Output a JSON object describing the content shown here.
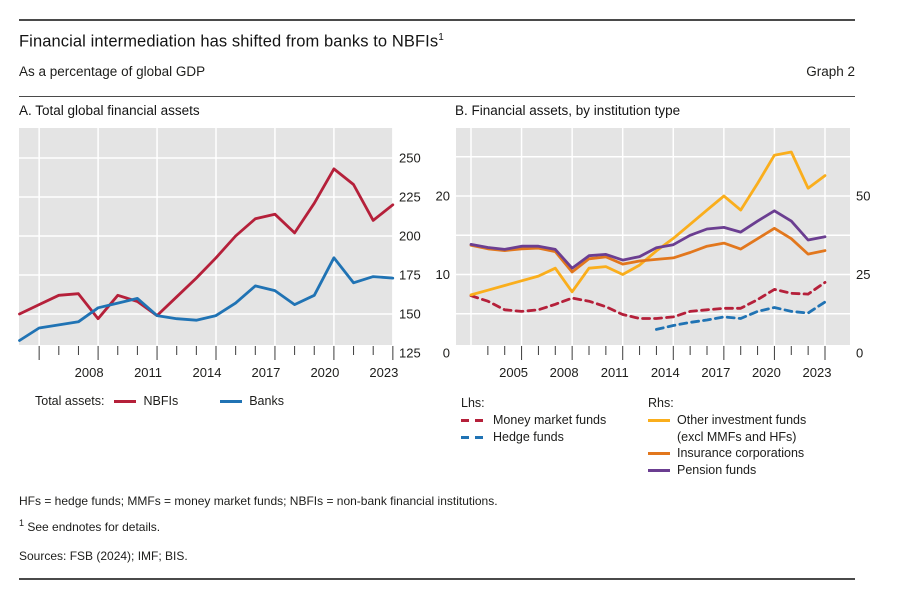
{
  "header": {
    "title": "Financial intermediation has shifted from banks to NBFIs",
    "title_superscript": "1",
    "subtitle": "As a percentage of global GDP",
    "graph_label": "Graph 2"
  },
  "colors": {
    "nbfi_red": "#b5203a",
    "banks_blue": "#2073b4",
    "oif_yellow": "#faae1c",
    "insurance_orange": "#e2771d",
    "pension_purple": "#6b3e91",
    "plot_bg": "#e4e4e4",
    "grid": "#ffffff",
    "tick": "#3c3c3c",
    "rule": "#4a4a4a"
  },
  "panel_a": {
    "title": "A. Total global financial assets",
    "legend_prefix": "Total assets:",
    "legend": [
      {
        "label": "NBFIs",
        "color": "#b5203a"
      },
      {
        "label": "Banks",
        "color": "#2073b4"
      }
    ]
  },
  "panel_b": {
    "title": "B. Financial assets, by institution type",
    "legend_lhs_header": "Lhs:",
    "legend_lhs": [
      {
        "label": "Money market funds",
        "color": "#b5203a"
      },
      {
        "label": "Hedge funds",
        "color": "#2073b4"
      }
    ],
    "legend_rhs_header": "Rhs:",
    "legend_rhs": [
      {
        "label": "Other investment funds",
        "label2": "(excl MMFs and HFs)",
        "color": "#faae1c"
      },
      {
        "label": "Insurance corporations",
        "label2": "",
        "color": "#e2771d"
      },
      {
        "label": "Pension funds",
        "label2": "",
        "color": "#6b3e91"
      }
    ]
  },
  "chart_data": [
    {
      "type": "line",
      "panel": "A",
      "title": "A. Total global financial assets",
      "x": [
        2004,
        2005,
        2006,
        2007,
        2008,
        2009,
        2010,
        2011,
        2012,
        2013,
        2014,
        2015,
        2016,
        2017,
        2018,
        2019,
        2020,
        2021,
        2022,
        2023
      ],
      "x_tick_labels": [
        2008,
        2011,
        2014,
        2017,
        2020,
        2023
      ],
      "x_major_ticks": [
        2005,
        2008,
        2011,
        2014,
        2017,
        2020,
        2023
      ],
      "y_axis_side": "right",
      "y_ticks": [
        125,
        150,
        175,
        200,
        225,
        250
      ],
      "y_gridlines": [
        150,
        175,
        200,
        225,
        250
      ],
      "ylim": [
        125,
        269
      ],
      "grid": true,
      "series": [
        {
          "name": "NBFIs",
          "color": "#b5203a",
          "style": "solid",
          "values": [
            150,
            156,
            162,
            163,
            147,
            162,
            158,
            149,
            161,
            173,
            186,
            200,
            211,
            214,
            202,
            221,
            243,
            233,
            210,
            220
          ]
        },
        {
          "name": "Banks",
          "color": "#2073b4",
          "style": "solid",
          "values": [
            133,
            141,
            143,
            145,
            154,
            157,
            160,
            149,
            147,
            146,
            149,
            157,
            168,
            165,
            156,
            162,
            186,
            170,
            174,
            173
          ]
        }
      ]
    },
    {
      "type": "line",
      "panel": "B",
      "title": "B. Financial assets, by institution type",
      "x": [
        2002,
        2003,
        2004,
        2005,
        2006,
        2007,
        2008,
        2009,
        2010,
        2011,
        2012,
        2013,
        2014,
        2015,
        2016,
        2017,
        2018,
        2019,
        2020,
        2021,
        2022,
        2023
      ],
      "x_tick_labels": [
        2005,
        2008,
        2011,
        2014,
        2017,
        2020,
        2023
      ],
      "x_major_ticks": [
        2002,
        2005,
        2008,
        2011,
        2014,
        2017,
        2020,
        2023
      ],
      "lhs_ticks": [
        0,
        10,
        20
      ],
      "rhs_ticks": [
        0,
        25,
        50
      ],
      "lhs_gridlines": [
        5,
        10,
        15,
        20,
        25
      ],
      "lhs_lim": [
        0,
        28.7
      ],
      "rhs_lim": [
        0,
        71.7
      ],
      "grid": true,
      "series": [
        {
          "name": "Money market funds",
          "axis": "lhs",
          "color": "#b5203a",
          "style": "dashed",
          "values": [
            7.3,
            6.6,
            5.5,
            5.3,
            5.5,
            6.2,
            7,
            6.6,
            5.9,
            4.9,
            4.4,
            4.4,
            4.6,
            5.3,
            5.5,
            5.7,
            5.7,
            6.8,
            8.1,
            7.6,
            7.5,
            9
          ]
        },
        {
          "name": "Hedge funds",
          "axis": "lhs",
          "color": "#2073b4",
          "style": "dashed",
          "values": [
            null,
            null,
            null,
            null,
            null,
            null,
            null,
            null,
            null,
            null,
            null,
            3,
            3.5,
            3.9,
            4.2,
            4.6,
            4.4,
            5.3,
            5.8,
            5.3,
            5.1,
            6.5
          ]
        },
        {
          "name": "Other investment funds (excl MMFs and HFs)",
          "axis": "rhs",
          "color": "#faae1c",
          "style": "solid",
          "values": [
            18.5,
            20,
            21.5,
            23,
            24.5,
            27,
            19.5,
            27,
            27.5,
            25,
            28,
            32.5,
            36.5,
            41,
            45.5,
            50,
            45.5,
            54,
            63,
            64,
            52.5,
            56.5
          ]
        },
        {
          "name": "Insurance corporations",
          "axis": "rhs",
          "color": "#e2771d",
          "style": "solid",
          "values": [
            34.3,
            33.2,
            32.6,
            33.2,
            33.4,
            32.3,
            25.8,
            30,
            30.6,
            28.3,
            29.3,
            29.8,
            30.3,
            32,
            34,
            35,
            33.1,
            36.4,
            39.7,
            36.4,
            31.5,
            32.6
          ]
        },
        {
          "name": "Pension funds",
          "axis": "rhs",
          "color": "#6b3e91",
          "style": "solid",
          "values": [
            34.6,
            33.6,
            33,
            34,
            34,
            33,
            27,
            31,
            31.4,
            29.6,
            30.7,
            33.5,
            34.5,
            37.5,
            39.5,
            40,
            38.5,
            42,
            45.3,
            42,
            36,
            37
          ]
        }
      ]
    }
  ],
  "footer": {
    "abbreviations": "HFs = hedge funds; MMFs = money market funds; NBFIs = non-bank financial institutions.",
    "footnote_marker": "1",
    "footnote_text": "See endnotes for details.",
    "sources": "Sources: FSB (2024); IMF; BIS."
  }
}
